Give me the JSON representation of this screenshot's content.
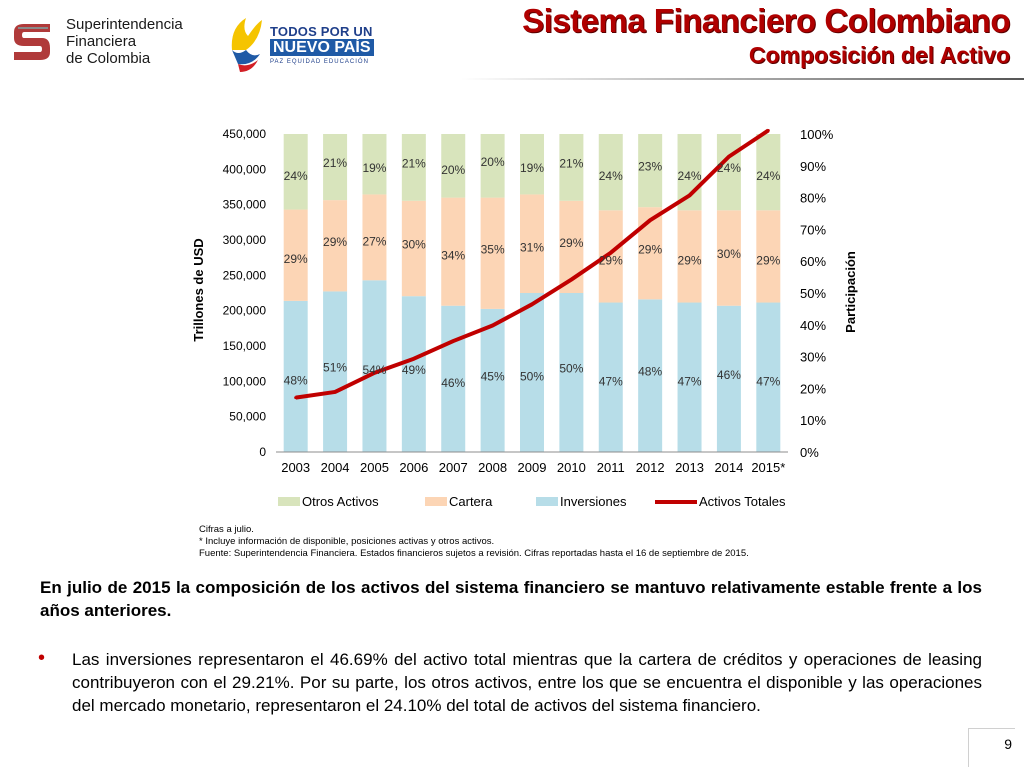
{
  "header": {
    "org_logo": {
      "icon": "sfc-logo-icon",
      "lines": [
        "Superintendencia",
        "Financiera",
        "de Colombia"
      ]
    },
    "gov_logo": {
      "icon": "colombia-bird-icon",
      "line1": "TODOS POR UN",
      "line2": "NUEVO PAÍS",
      "tagline": "PAZ   EQUIDAD   EDUCACIÓN"
    },
    "title": "Sistema Financiero Colombiano",
    "subtitle": "Composición del Activo"
  },
  "chart_data": {
    "type": "bar",
    "stacked": true,
    "categories": [
      "2003",
      "2004",
      "2005",
      "2006",
      "2007",
      "2008",
      "2009",
      "2010",
      "2011",
      "2012",
      "2013",
      "2014",
      "2015*"
    ],
    "series": [
      {
        "name": "Inversiones",
        "axis": "right",
        "labels": [
          "48%",
          "51%",
          "54%",
          "49%",
          "46%",
          "45%",
          "50%",
          "50%",
          "47%",
          "48%",
          "47%",
          "46%",
          "47%"
        ],
        "values": [
          48,
          51,
          54,
          49,
          46,
          45,
          50,
          50,
          47,
          48,
          47,
          46,
          47
        ],
        "color": "#b7dde8"
      },
      {
        "name": "Cartera",
        "axis": "right",
        "labels": [
          "29%",
          "29%",
          "27%",
          "30%",
          "34%",
          "35%",
          "31%",
          "29%",
          "29%",
          "29%",
          "29%",
          "30%",
          "29%"
        ],
        "values": [
          29,
          29,
          27,
          30,
          34,
          35,
          31,
          29,
          29,
          29,
          29,
          30,
          29
        ],
        "color": "#fcd5b5"
      },
      {
        "name": "Otros Activos",
        "axis": "right",
        "labels": [
          "24%",
          "21%",
          "19%",
          "21%",
          "20%",
          "20%",
          "19%",
          "21%",
          "24%",
          "23%",
          "24%",
          "24%",
          "24%"
        ],
        "values": [
          24,
          21,
          19,
          21,
          20,
          20,
          19,
          21,
          24,
          23,
          24,
          24,
          24
        ],
        "color": "#d8e4bc"
      },
      {
        "name": "Activos Totales",
        "axis": "left",
        "type": "line",
        "values": [
          77000,
          85000,
          112000,
          132000,
          157000,
          179000,
          209000,
          244000,
          282000,
          328000,
          363000,
          418000,
          455000
        ],
        "color": "#c00000"
      }
    ],
    "ylabel": "Trillones de USD",
    "y2label": "Participación",
    "yticks": [
      "0",
      "50,000",
      "100,000",
      "150,000",
      "200,000",
      "250,000",
      "300,000",
      "350,000",
      "400,000",
      "450,000"
    ],
    "y2ticks": [
      "0%",
      "10%",
      "20%",
      "30%",
      "40%",
      "50%",
      "60%",
      "70%",
      "80%",
      "90%",
      "100%"
    ],
    "ylim": [
      0,
      450000
    ],
    "y2lim": [
      0,
      100
    ],
    "legend": [
      "Otros Activos",
      "Cartera",
      "Inversiones",
      "Activos Totales"
    ],
    "legend_position": "bottom",
    "grid": false
  },
  "notes": [
    "Cifras a julio.",
    "* Incluye información de disponible, posiciones activas y otros activos.",
    "Fuente: Superintendencia Financiera. Estados financieros sujetos a revisión. Cifras reportadas hasta el 16 de septiembre de 2015."
  ],
  "body": {
    "paragraph": "En julio de 2015 la composición de los activos del sistema financiero se mantuvo relativamente estable frente a los años anteriores.",
    "bullet": "Las inversiones representaron el 46.69% del activo total mientras que la cartera de créditos y operaciones de leasing contribuyeron con el 29.21%. Por su parte, los otros activos, entre los que se encuentra el disponible y las operaciones del mercado monetario, representaron el 24.10% del total de activos del sistema financiero."
  },
  "page_number": "9"
}
